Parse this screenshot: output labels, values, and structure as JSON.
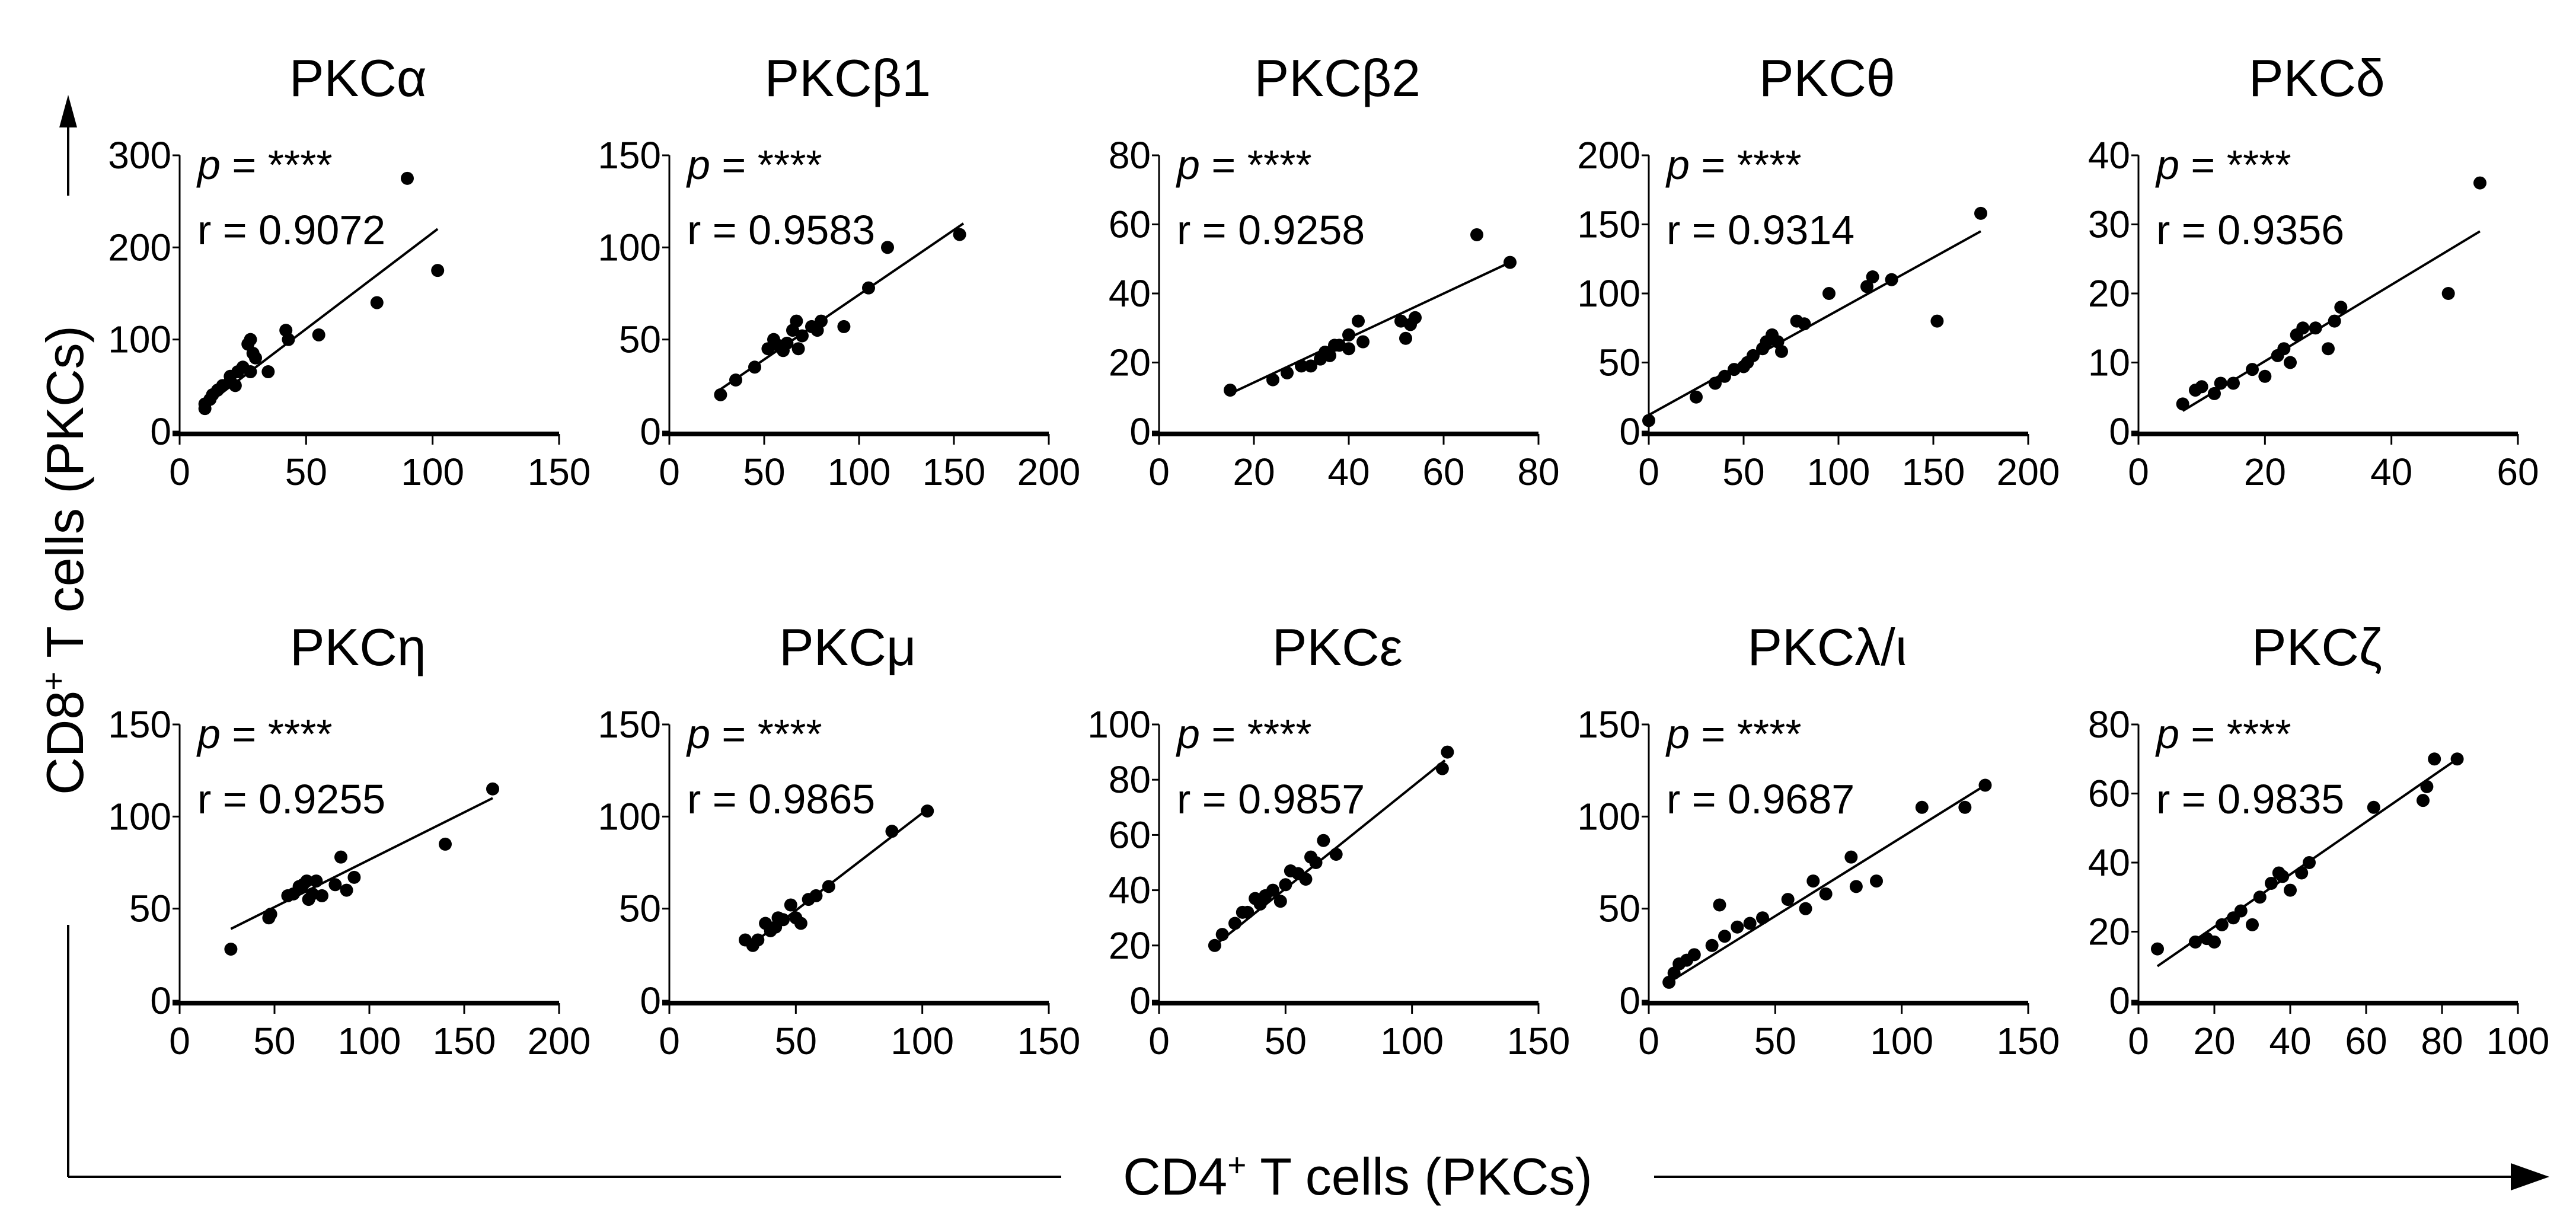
{
  "figure": {
    "y_axis_label": {
      "main": "CD8",
      "sup": "+",
      "rest": " T cells (PKCs)"
    },
    "x_axis_label": {
      "main": "CD4",
      "sup": "+",
      "rest": " T cells (PKCs)"
    },
    "colors": {
      "points": "#000000",
      "lines": "#000000",
      "background": "#ffffff"
    }
  },
  "chart_data": [
    {
      "type": "scatter",
      "title": "PKCα",
      "p_label": "p",
      "p_value": "= ****",
      "r_text": "r = 0.9072",
      "xlim": [
        0,
        150
      ],
      "ylim": [
        0,
        300
      ],
      "xticks": [
        0,
        50,
        100,
        150
      ],
      "yticks": [
        0,
        100,
        200,
        300
      ],
      "points": [
        [
          10,
          25
        ],
        [
          10,
          30
        ],
        [
          12,
          35
        ],
        [
          13,
          40
        ],
        [
          15,
          45
        ],
        [
          17,
          50
        ],
        [
          20,
          55
        ],
        [
          20,
          60
        ],
        [
          22,
          50
        ],
        [
          23,
          65
        ],
        [
          25,
          70
        ],
        [
          27,
          95
        ],
        [
          28,
          100
        ],
        [
          28,
          65
        ],
        [
          29,
          85
        ],
        [
          30,
          80
        ],
        [
          35,
          65
        ],
        [
          42,
          110
        ],
        [
          43,
          100
        ],
        [
          55,
          105
        ],
        [
          78,
          140
        ],
        [
          90,
          275
        ],
        [
          102,
          175
        ]
      ],
      "fit": [
        [
          10,
          28
        ],
        [
          102,
          220
        ]
      ]
    },
    {
      "type": "scatter",
      "title": "PKCβ1",
      "p_label": "p",
      "p_value": "= ****",
      "r_text": "r = 0.9583",
      "xlim": [
        0,
        200
      ],
      "ylim": [
        0,
        150
      ],
      "xticks": [
        0,
        50,
        100,
        150,
        200
      ],
      "yticks": [
        0,
        50,
        100,
        150
      ],
      "points": [
        [
          27,
          20
        ],
        [
          35,
          28
        ],
        [
          45,
          35
        ],
        [
          52,
          45
        ],
        [
          55,
          50
        ],
        [
          57,
          47
        ],
        [
          60,
          44
        ],
        [
          62,
          48
        ],
        [
          65,
          55
        ],
        [
          67,
          60
        ],
        [
          68,
          45
        ],
        [
          70,
          52
        ],
        [
          75,
          57
        ],
        [
          78,
          55
        ],
        [
          80,
          60
        ],
        [
          92,
          57
        ],
        [
          105,
          78
        ],
        [
          115,
          100
        ],
        [
          153,
          107
        ]
      ],
      "fit": [
        [
          27,
          23
        ],
        [
          155,
          113
        ]
      ]
    },
    {
      "type": "scatter",
      "title": "PKCβ2",
      "p_label": "p",
      "p_value": "= ****",
      "r_text": "r = 0.9258",
      "xlim": [
        0,
        80
      ],
      "ylim": [
        0,
        80
      ],
      "xticks": [
        0,
        20,
        40,
        60,
        80
      ],
      "yticks": [
        0,
        20,
        40,
        60,
        80
      ],
      "points": [
        [
          15,
          12
        ],
        [
          24,
          15
        ],
        [
          27,
          17
        ],
        [
          30,
          19
        ],
        [
          32,
          19
        ],
        [
          34,
          21
        ],
        [
          35,
          23
        ],
        [
          36,
          22
        ],
        [
          37,
          25
        ],
        [
          38,
          25
        ],
        [
          40,
          28
        ],
        [
          40,
          24
        ],
        [
          42,
          32
        ],
        [
          43,
          26
        ],
        [
          51,
          32
        ],
        [
          52,
          27
        ],
        [
          53,
          31
        ],
        [
          54,
          33
        ],
        [
          67,
          57
        ],
        [
          74,
          49
        ]
      ],
      "fit": [
        [
          15,
          11
        ],
        [
          74,
          49
        ]
      ]
    },
    {
      "type": "scatter",
      "title": "PKCθ",
      "p_label": "p",
      "p_value": "= ****",
      "r_text": "r = 0.9314",
      "xlim": [
        0,
        200
      ],
      "ylim": [
        0,
        200
      ],
      "xticks": [
        0,
        50,
        100,
        150,
        200
      ],
      "yticks": [
        0,
        50,
        100,
        150,
        200
      ],
      "points": [
        [
          0,
          8
        ],
        [
          25,
          25
        ],
        [
          35,
          35
        ],
        [
          40,
          40
        ],
        [
          45,
          45
        ],
        [
          50,
          47
        ],
        [
          52,
          50
        ],
        [
          55,
          55
        ],
        [
          60,
          60
        ],
        [
          62,
          65
        ],
        [
          65,
          70
        ],
        [
          68,
          65
        ],
        [
          70,
          58
        ],
        [
          78,
          80
        ],
        [
          82,
          78
        ],
        [
          95,
          100
        ],
        [
          115,
          105
        ],
        [
          118,
          112
        ],
        [
          128,
          110
        ],
        [
          152,
          80
        ],
        [
          175,
          158
        ]
      ],
      "fit": [
        [
          0,
          12
        ],
        [
          175,
          145
        ]
      ]
    },
    {
      "type": "scatter",
      "title": "PKCδ",
      "p_label": "p",
      "p_value": "= ****",
      "r_text": "r = 0.9356",
      "xlim": [
        0,
        60
      ],
      "ylim": [
        0,
        40
      ],
      "xticks": [
        0,
        20,
        40,
        60
      ],
      "yticks": [
        0,
        10,
        20,
        30,
        40
      ],
      "points": [
        [
          7,
          4
        ],
        [
          9,
          6
        ],
        [
          10,
          6.5
        ],
        [
          12,
          5.5
        ],
        [
          13,
          7
        ],
        [
          15,
          7
        ],
        [
          18,
          9
        ],
        [
          20,
          8
        ],
        [
          22,
          11
        ],
        [
          23,
          12
        ],
        [
          24,
          10
        ],
        [
          25,
          14
        ],
        [
          26,
          15
        ],
        [
          28,
          15
        ],
        [
          30,
          12
        ],
        [
          31,
          16
        ],
        [
          32,
          18
        ],
        [
          49,
          20
        ],
        [
          54,
          36
        ]
      ],
      "fit": [
        [
          7,
          3
        ],
        [
          54,
          29
        ]
      ]
    },
    {
      "type": "scatter",
      "title": "PKCη",
      "p_label": "p",
      "p_value": "= ****",
      "r_text": "r = 0.9255",
      "xlim": [
        0,
        200
      ],
      "ylim": [
        0,
        150
      ],
      "xticks": [
        0,
        50,
        100,
        150,
        200
      ],
      "yticks": [
        0,
        50,
        100,
        150
      ],
      "points": [
        [
          27,
          28
        ],
        [
          47,
          45
        ],
        [
          48,
          47
        ],
        [
          57,
          57
        ],
        [
          60,
          58
        ],
        [
          63,
          62
        ],
        [
          65,
          63
        ],
        [
          67,
          65
        ],
        [
          68,
          55
        ],
        [
          70,
          58
        ],
        [
          72,
          65
        ],
        [
          75,
          57
        ],
        [
          82,
          63
        ],
        [
          85,
          78
        ],
        [
          88,
          60
        ],
        [
          92,
          67
        ],
        [
          140,
          85
        ],
        [
          165,
          115
        ]
      ],
      "fit": [
        [
          27,
          39
        ],
        [
          165,
          110
        ]
      ]
    },
    {
      "type": "scatter",
      "title": "PKCμ",
      "p_label": "p",
      "p_value": "= ****",
      "r_text": "r = 0.9865",
      "xlim": [
        0,
        150
      ],
      "ylim": [
        0,
        150
      ],
      "xticks": [
        0,
        50,
        100,
        150
      ],
      "yticks": [
        0,
        50,
        100,
        150
      ],
      "points": [
        [
          30,
          33
        ],
        [
          33,
          30
        ],
        [
          35,
          33
        ],
        [
          38,
          42
        ],
        [
          40,
          38
        ],
        [
          42,
          40
        ],
        [
          43,
          45
        ],
        [
          45,
          44
        ],
        [
          48,
          52
        ],
        [
          50,
          45
        ],
        [
          52,
          42
        ],
        [
          55,
          55
        ],
        [
          58,
          57
        ],
        [
          63,
          62
        ],
        [
          88,
          92
        ],
        [
          102,
          103
        ]
      ],
      "fit": [
        [
          32,
          30
        ],
        [
          103,
          105
        ]
      ]
    },
    {
      "type": "scatter",
      "title": "PKCε",
      "p_label": "p",
      "p_value": "= ****",
      "r_text": "r = 0.9857",
      "xlim": [
        0,
        150
      ],
      "ylim": [
        0,
        100
      ],
      "xticks": [
        0,
        50,
        100,
        150
      ],
      "yticks": [
        0,
        20,
        40,
        60,
        80,
        100
      ],
      "points": [
        [
          22,
          20
        ],
        [
          25,
          24
        ],
        [
          30,
          28
        ],
        [
          33,
          32
        ],
        [
          35,
          32
        ],
        [
          38,
          37
        ],
        [
          40,
          35
        ],
        [
          42,
          38
        ],
        [
          45,
          40
        ],
        [
          48,
          36
        ],
        [
          50,
          42
        ],
        [
          52,
          47
        ],
        [
          55,
          46
        ],
        [
          58,
          44
        ],
        [
          60,
          52
        ],
        [
          62,
          50
        ],
        [
          65,
          58
        ],
        [
          70,
          53
        ],
        [
          112,
          84
        ],
        [
          114,
          90
        ]
      ],
      "fit": [
        [
          22,
          20
        ],
        [
          113,
          87
        ]
      ]
    },
    {
      "type": "scatter",
      "title": "PKCλ/ι",
      "p_label": "p",
      "p_value": "= ****",
      "r_text": "r = 0.9687",
      "xlim": [
        0,
        150
      ],
      "ylim": [
        0,
        150
      ],
      "xticks": [
        0,
        50,
        100,
        150
      ],
      "yticks": [
        0,
        50,
        100,
        150
      ],
      "points": [
        [
          8,
          10
        ],
        [
          10,
          15
        ],
        [
          12,
          20
        ],
        [
          15,
          22
        ],
        [
          18,
          25
        ],
        [
          25,
          30
        ],
        [
          28,
          52
        ],
        [
          30,
          35
        ],
        [
          35,
          40
        ],
        [
          40,
          42
        ],
        [
          45,
          45
        ],
        [
          55,
          55
        ],
        [
          62,
          50
        ],
        [
          65,
          65
        ],
        [
          70,
          58
        ],
        [
          80,
          78
        ],
        [
          82,
          62
        ],
        [
          90,
          65
        ],
        [
          108,
          105
        ],
        [
          125,
          105
        ],
        [
          133,
          117
        ]
      ],
      "fit": [
        [
          8,
          10
        ],
        [
          133,
          117
        ]
      ]
    },
    {
      "type": "scatter",
      "title": "PKCζ",
      "p_label": "p",
      "p_value": "= ****",
      "r_text": "r = 0.9835",
      "xlim": [
        0,
        100
      ],
      "ylim": [
        0,
        80
      ],
      "xticks": [
        0,
        20,
        40,
        60,
        80,
        100
      ],
      "yticks": [
        0,
        20,
        40,
        60,
        80
      ],
      "points": [
        [
          5,
          15
        ],
        [
          15,
          17
        ],
        [
          18,
          18
        ],
        [
          20,
          17
        ],
        [
          22,
          22
        ],
        [
          25,
          24
        ],
        [
          27,
          26
        ],
        [
          30,
          22
        ],
        [
          32,
          30
        ],
        [
          35,
          34
        ],
        [
          37,
          37
        ],
        [
          38,
          36
        ],
        [
          40,
          32
        ],
        [
          43,
          37
        ],
        [
          45,
          40
        ],
        [
          62,
          56
        ],
        [
          75,
          58
        ],
        [
          76,
          62
        ],
        [
          78,
          70
        ],
        [
          84,
          70
        ]
      ],
      "fit": [
        [
          5,
          10
        ],
        [
          84,
          70
        ]
      ]
    }
  ]
}
